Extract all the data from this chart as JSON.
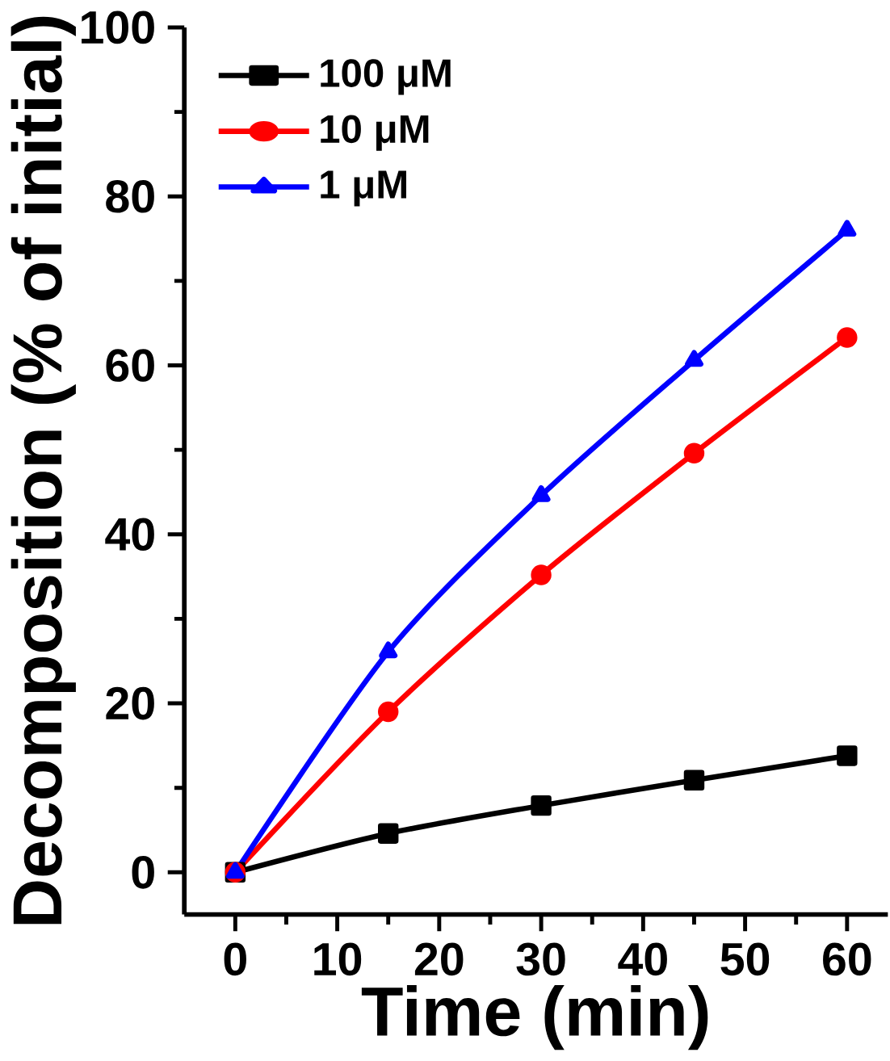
{
  "chart_data": {
    "type": "line",
    "xlabel": "Time (min)",
    "ylabel": "Decomposition (% of initial)",
    "x": [
      0,
      15,
      30,
      45,
      60
    ],
    "series": [
      {
        "name": "100 μM",
        "color": "#000000",
        "marker": "square",
        "values": [
          0,
          4.6,
          7.9,
          10.9,
          13.8
        ]
      },
      {
        "name": "10 μM",
        "color": "#ff0000",
        "marker": "circle",
        "values": [
          0,
          19.0,
          35.2,
          49.6,
          63.3
        ]
      },
      {
        "name": "1 μM",
        "color": "#0000ff",
        "marker": "triangle",
        "values": [
          0,
          26.1,
          44.6,
          60.6,
          76.0
        ]
      }
    ],
    "xlim": [
      -5,
      64
    ],
    "ylim": [
      -5,
      100
    ],
    "xticks": [
      0,
      10,
      20,
      30,
      40,
      50,
      60
    ],
    "yticks": [
      0,
      20,
      40,
      60,
      80,
      100
    ],
    "legend": "top left",
    "grid": false,
    "line_style": "solid"
  }
}
